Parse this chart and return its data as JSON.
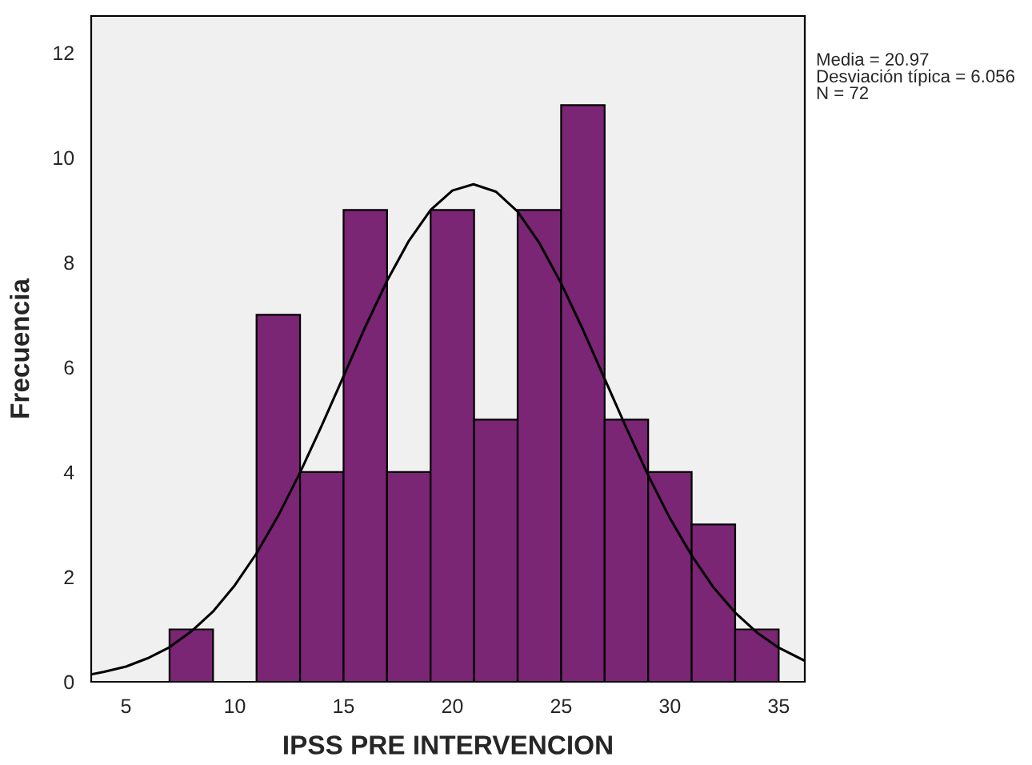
{
  "chart_data": {
    "type": "histogram",
    "xlabel": "IPSS PRE INTERVENCION",
    "ylabel": "Frecuencia",
    "bins": [
      7,
      9,
      11,
      13,
      15,
      17,
      19,
      21,
      23,
      25,
      27,
      29,
      31,
      33,
      35
    ],
    "values": [
      1,
      0,
      7,
      4,
      9,
      4,
      9,
      5,
      9,
      11,
      5,
      4,
      3,
      1
    ],
    "color": "#7b2575",
    "series": [
      {
        "type": "line",
        "color": "#000000",
        "x": [
          3.4,
          4,
          5,
          6,
          7,
          8,
          9,
          10,
          11,
          12,
          13,
          14,
          15,
          16,
          17,
          18,
          19,
          20,
          20.97,
          22,
          23,
          24,
          25,
          26,
          27,
          28,
          29,
          30,
          31,
          32,
          33,
          34,
          35,
          36.2
        ],
        "values": [
          0.14,
          0.19,
          0.29,
          0.45,
          0.66,
          0.96,
          1.34,
          1.84,
          2.45,
          3.17,
          3.99,
          4.89,
          5.83,
          6.77,
          7.65,
          8.41,
          9.0,
          9.37,
          9.49,
          9.35,
          8.97,
          8.37,
          7.6,
          6.72,
          5.78,
          4.84,
          3.94,
          3.12,
          2.41,
          1.8,
          1.32,
          0.94,
          0.65,
          0.4
        ]
      }
    ],
    "xlim": [
      3.4,
      36.2
    ],
    "ylim": [
      0,
      12.7
    ],
    "xticks": [
      5,
      10,
      15,
      20,
      25,
      30,
      35
    ],
    "yticks": [
      0,
      2,
      4,
      6,
      8,
      10,
      12
    ],
    "grid": false,
    "legend": false,
    "annotations": [
      "Media = 20.97",
      "Desviación típica = 6.056",
      "N = 72"
    ]
  }
}
